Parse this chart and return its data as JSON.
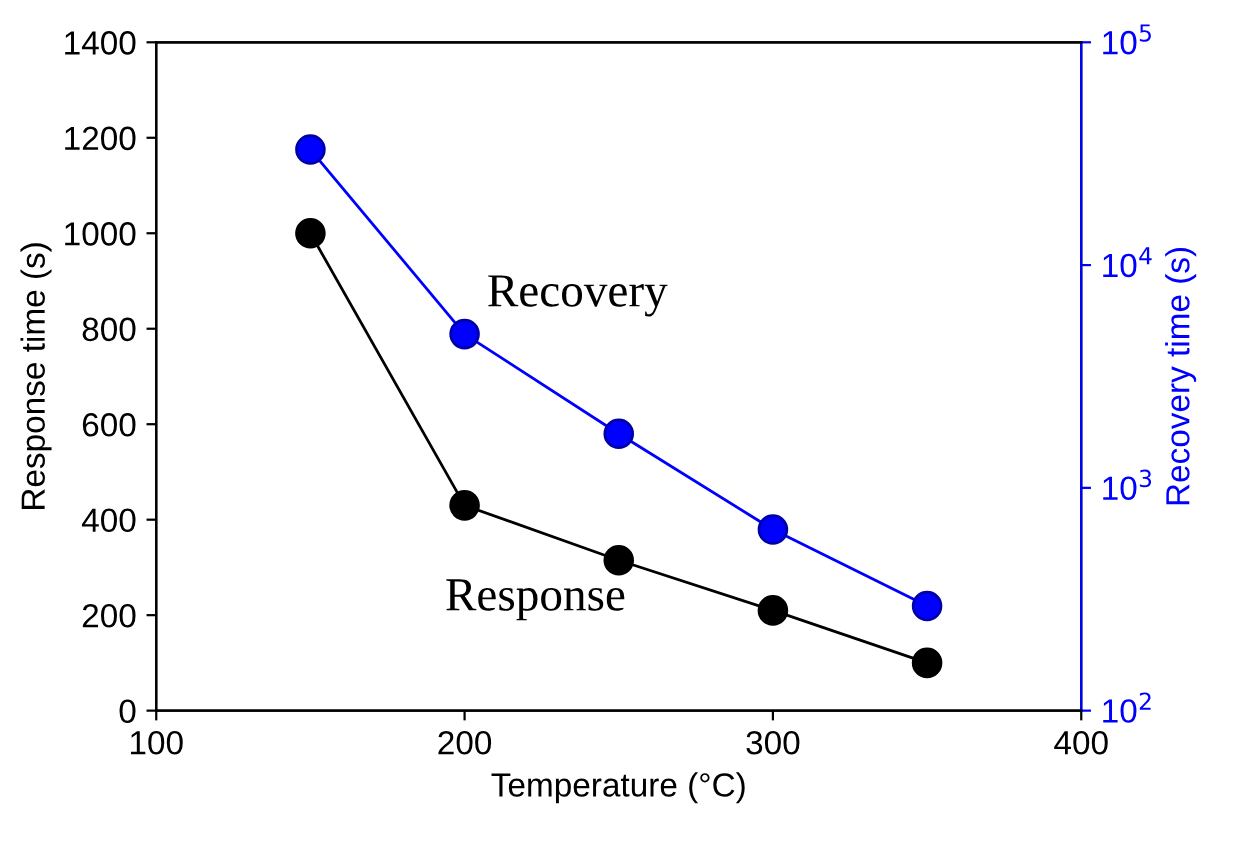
{
  "chart_data": {
    "type": "line",
    "xlabel": "Temperature (°C)",
    "ylabel": "Response time (s)",
    "y2label": "Recovery time (s)",
    "x": [
      150,
      200,
      250,
      300,
      350
    ],
    "series": [
      {
        "name": "Response",
        "color": "#000000",
        "values": [
          1000,
          430,
          315,
          210,
          100
        ]
      },
      {
        "name": "Recovery",
        "color": "#0000ff",
        "values": [
          33000,
          4900,
          1750,
          650,
          295
        ],
        "axis": "y2"
      }
    ],
    "xlim": [
      100,
      400
    ],
    "xticks": [
      100,
      200,
      300,
      400
    ],
    "ylim": [
      0,
      1400
    ],
    "yticks": [
      0,
      200,
      400,
      600,
      800,
      1000,
      1200,
      1400
    ],
    "y2lim": [
      100,
      100000
    ],
    "y2ticks": [
      {
        "value": 100,
        "label": "10$^{2}$"
      },
      {
        "value": 1000,
        "label": "10$^{3}$"
      },
      {
        "value": 10000,
        "label": "10$^{4}$"
      },
      {
        "value": 100000,
        "label": "10$^{5}$"
      }
    ],
    "log": "y2",
    "marker": "circle",
    "line_style": "solid",
    "grid": false,
    "legend": false
  }
}
